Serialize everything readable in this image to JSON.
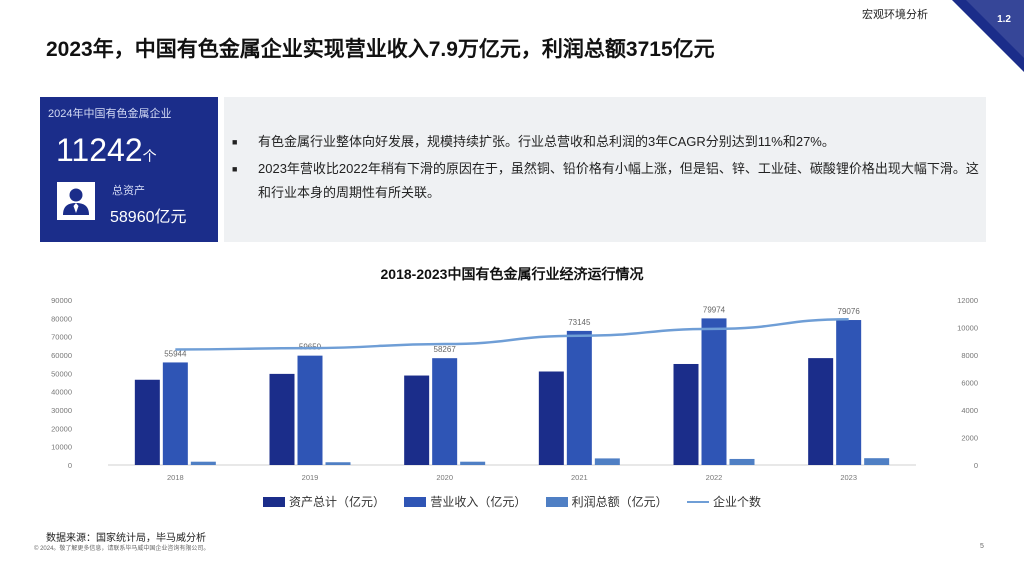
{
  "header": {
    "section": "宏观环境分析",
    "page_badge": "1.2",
    "title": "2023年，中国有色金属企业实现营业收入7.9万亿元，利润总额3715亿元"
  },
  "kpi": {
    "label": "2024年中国有色金属企业",
    "value": "11242",
    "unit": "个",
    "asset_label": "总资产",
    "asset_value": "58960亿元",
    "icon": "person-icon"
  },
  "bullets": [
    "有色金属行业整体向好发展，规模持续扩张。行业总营收和总利润的3年CAGR分别达到11%和27%。",
    "2023年营收比2022年稍有下滑的原因在于，虽然铜、铅价格有小幅上涨，但是铝、锌、工业硅、碳酸锂价格出现大幅下滑。这和行业本身的周期性有所关联。"
  ],
  "chart_data": {
    "type": "bar",
    "title": "2018-2023中国有色金属行业经济运行情况",
    "categories": [
      "2018",
      "2019",
      "2020",
      "2021",
      "2022",
      "2023"
    ],
    "series": [
      {
        "name": "资产总计（亿元）",
        "type": "bar",
        "axis": "left",
        "color": "#1b2d8a",
        "values": [
          46500,
          49700,
          48800,
          51000,
          55100,
          58300
        ]
      },
      {
        "name": "营业收入（亿元）",
        "type": "bar",
        "axis": "left",
        "color": "#2f55b5",
        "values": [
          55944,
          59650,
          58267,
          73145,
          79974,
          79076
        ]
      },
      {
        "name": "利润总额（亿元）",
        "type": "bar",
        "axis": "left",
        "color": "#4f7fc4",
        "values": [
          1800,
          1500,
          1800,
          3600,
          3300,
          3715
        ]
      },
      {
        "name": "企业个数",
        "type": "line",
        "axis": "right",
        "color": "#6f9ed6",
        "values": [
          8400,
          8500,
          8800,
          9400,
          9900,
          10600
        ]
      }
    ],
    "data_labels": [
      "55944",
      "59650",
      "58267",
      "73145",
      "79974",
      "79076"
    ],
    "ylim_left": [
      0,
      90000
    ],
    "ylim_right": [
      0,
      12000
    ],
    "yticks_left": [
      "0",
      "10000",
      "20000",
      "30000",
      "40000",
      "50000",
      "60000",
      "70000",
      "80000",
      "90000"
    ],
    "yticks_right": [
      "0",
      "2000",
      "4000",
      "6000",
      "8000",
      "10000",
      "12000"
    ],
    "grid": false,
    "legend": "bottom"
  },
  "footer": {
    "source": "数据来源：国家统计局，毕马威分析",
    "copyright": "© 2024。敬了解更多信息，请联系毕马威中国企业咨询有限公司。",
    "page_number": "5"
  }
}
